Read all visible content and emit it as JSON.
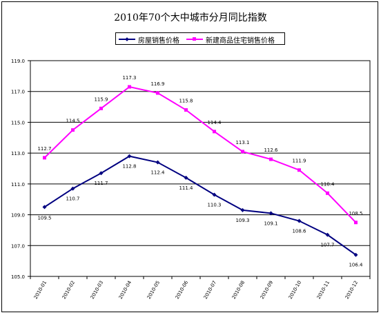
{
  "chart_data": {
    "type": "line",
    "title": "2010年70个大中城市分月同比指数",
    "categories": [
      "2010-01",
      "2010-02",
      "2010-03",
      "2010-04",
      "2010-05",
      "2010-06",
      "2010-07",
      "2010-08",
      "2010-09",
      "2010-10",
      "2010-11",
      "2010-12"
    ],
    "ylim": [
      105.0,
      119.0
    ],
    "yticks": [
      "105.0",
      "107.0",
      "109.0",
      "111.0",
      "113.0",
      "115.0",
      "117.0",
      "119.0"
    ],
    "ytick_values": [
      105.0,
      107.0,
      109.0,
      111.0,
      113.0,
      115.0,
      117.0,
      119.0
    ],
    "grid": true,
    "legend_position": "top",
    "series": [
      {
        "name": "房屋销售价格",
        "color": "#000080",
        "marker": "diamond",
        "values": [
          109.5,
          110.7,
          111.7,
          112.8,
          112.4,
          111.4,
          110.3,
          109.3,
          109.1,
          108.6,
          107.7,
          106.4
        ],
        "labels": [
          "109.5",
          "110.7",
          "111.7",
          "112.8",
          "112.4",
          "111.4",
          "110.3",
          "109.3",
          "109.1",
          "108.6",
          "107.7",
          "106.4"
        ]
      },
      {
        "name": "新建商品住宅销售价格",
        "color": "#ff00ff",
        "marker": "square",
        "values": [
          112.7,
          114.5,
          115.9,
          117.3,
          116.9,
          115.8,
          114.4,
          113.1,
          112.6,
          111.9,
          110.4,
          108.5
        ],
        "labels": [
          "112.7",
          "114.5",
          "115.9",
          "117.3",
          "116.9",
          "115.8",
          "114.4",
          "113.1",
          "112.6",
          "111.9",
          "110.4",
          "108.5"
        ]
      }
    ]
  }
}
